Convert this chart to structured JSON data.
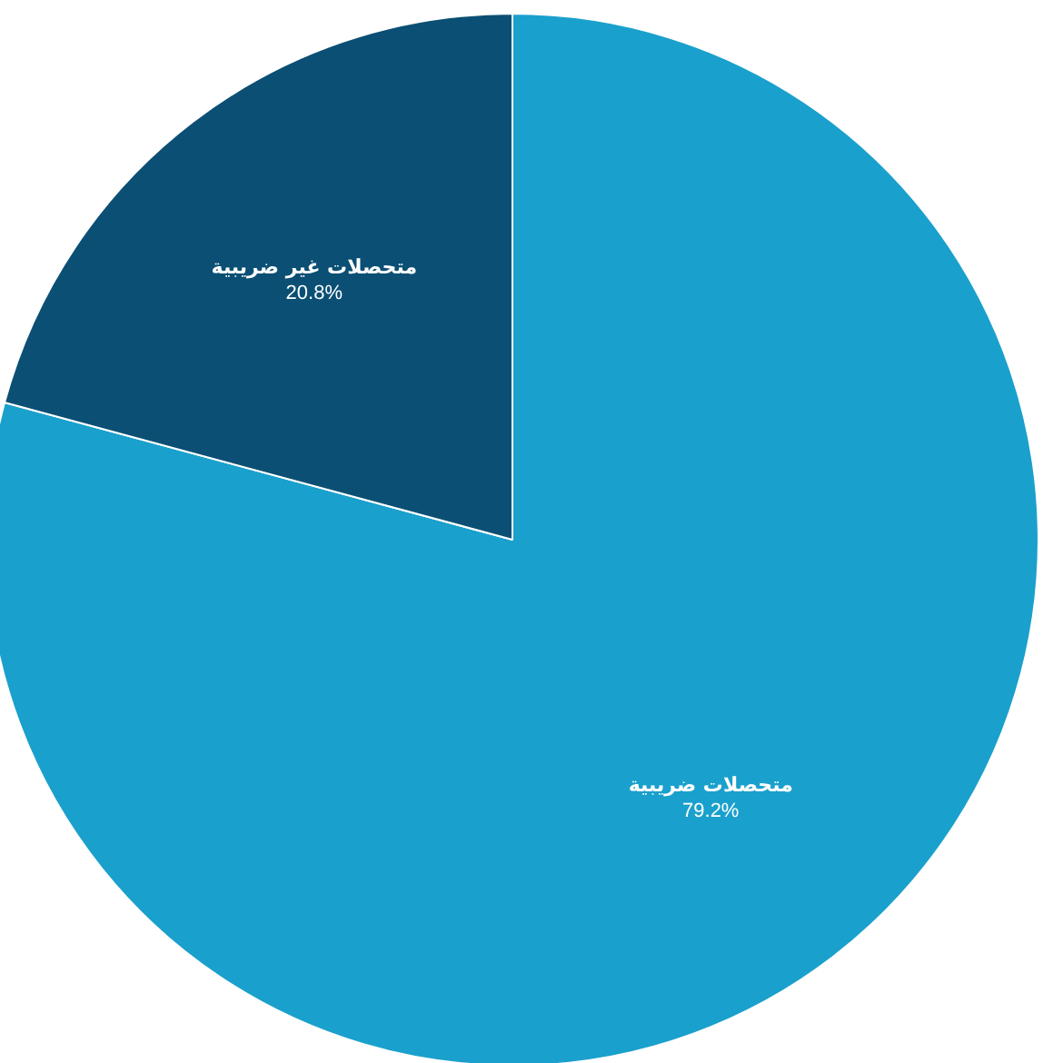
{
  "chart_data": {
    "type": "pie",
    "categories": [
      "متحصلات ضريبية",
      "متحصلات غير ضريبية"
    ],
    "values": [
      79.2,
      20.8
    ],
    "value_labels": [
      "79.2%",
      "20.8%"
    ],
    "colors": [
      "#1aa0cc",
      "#0b4f74"
    ]
  }
}
